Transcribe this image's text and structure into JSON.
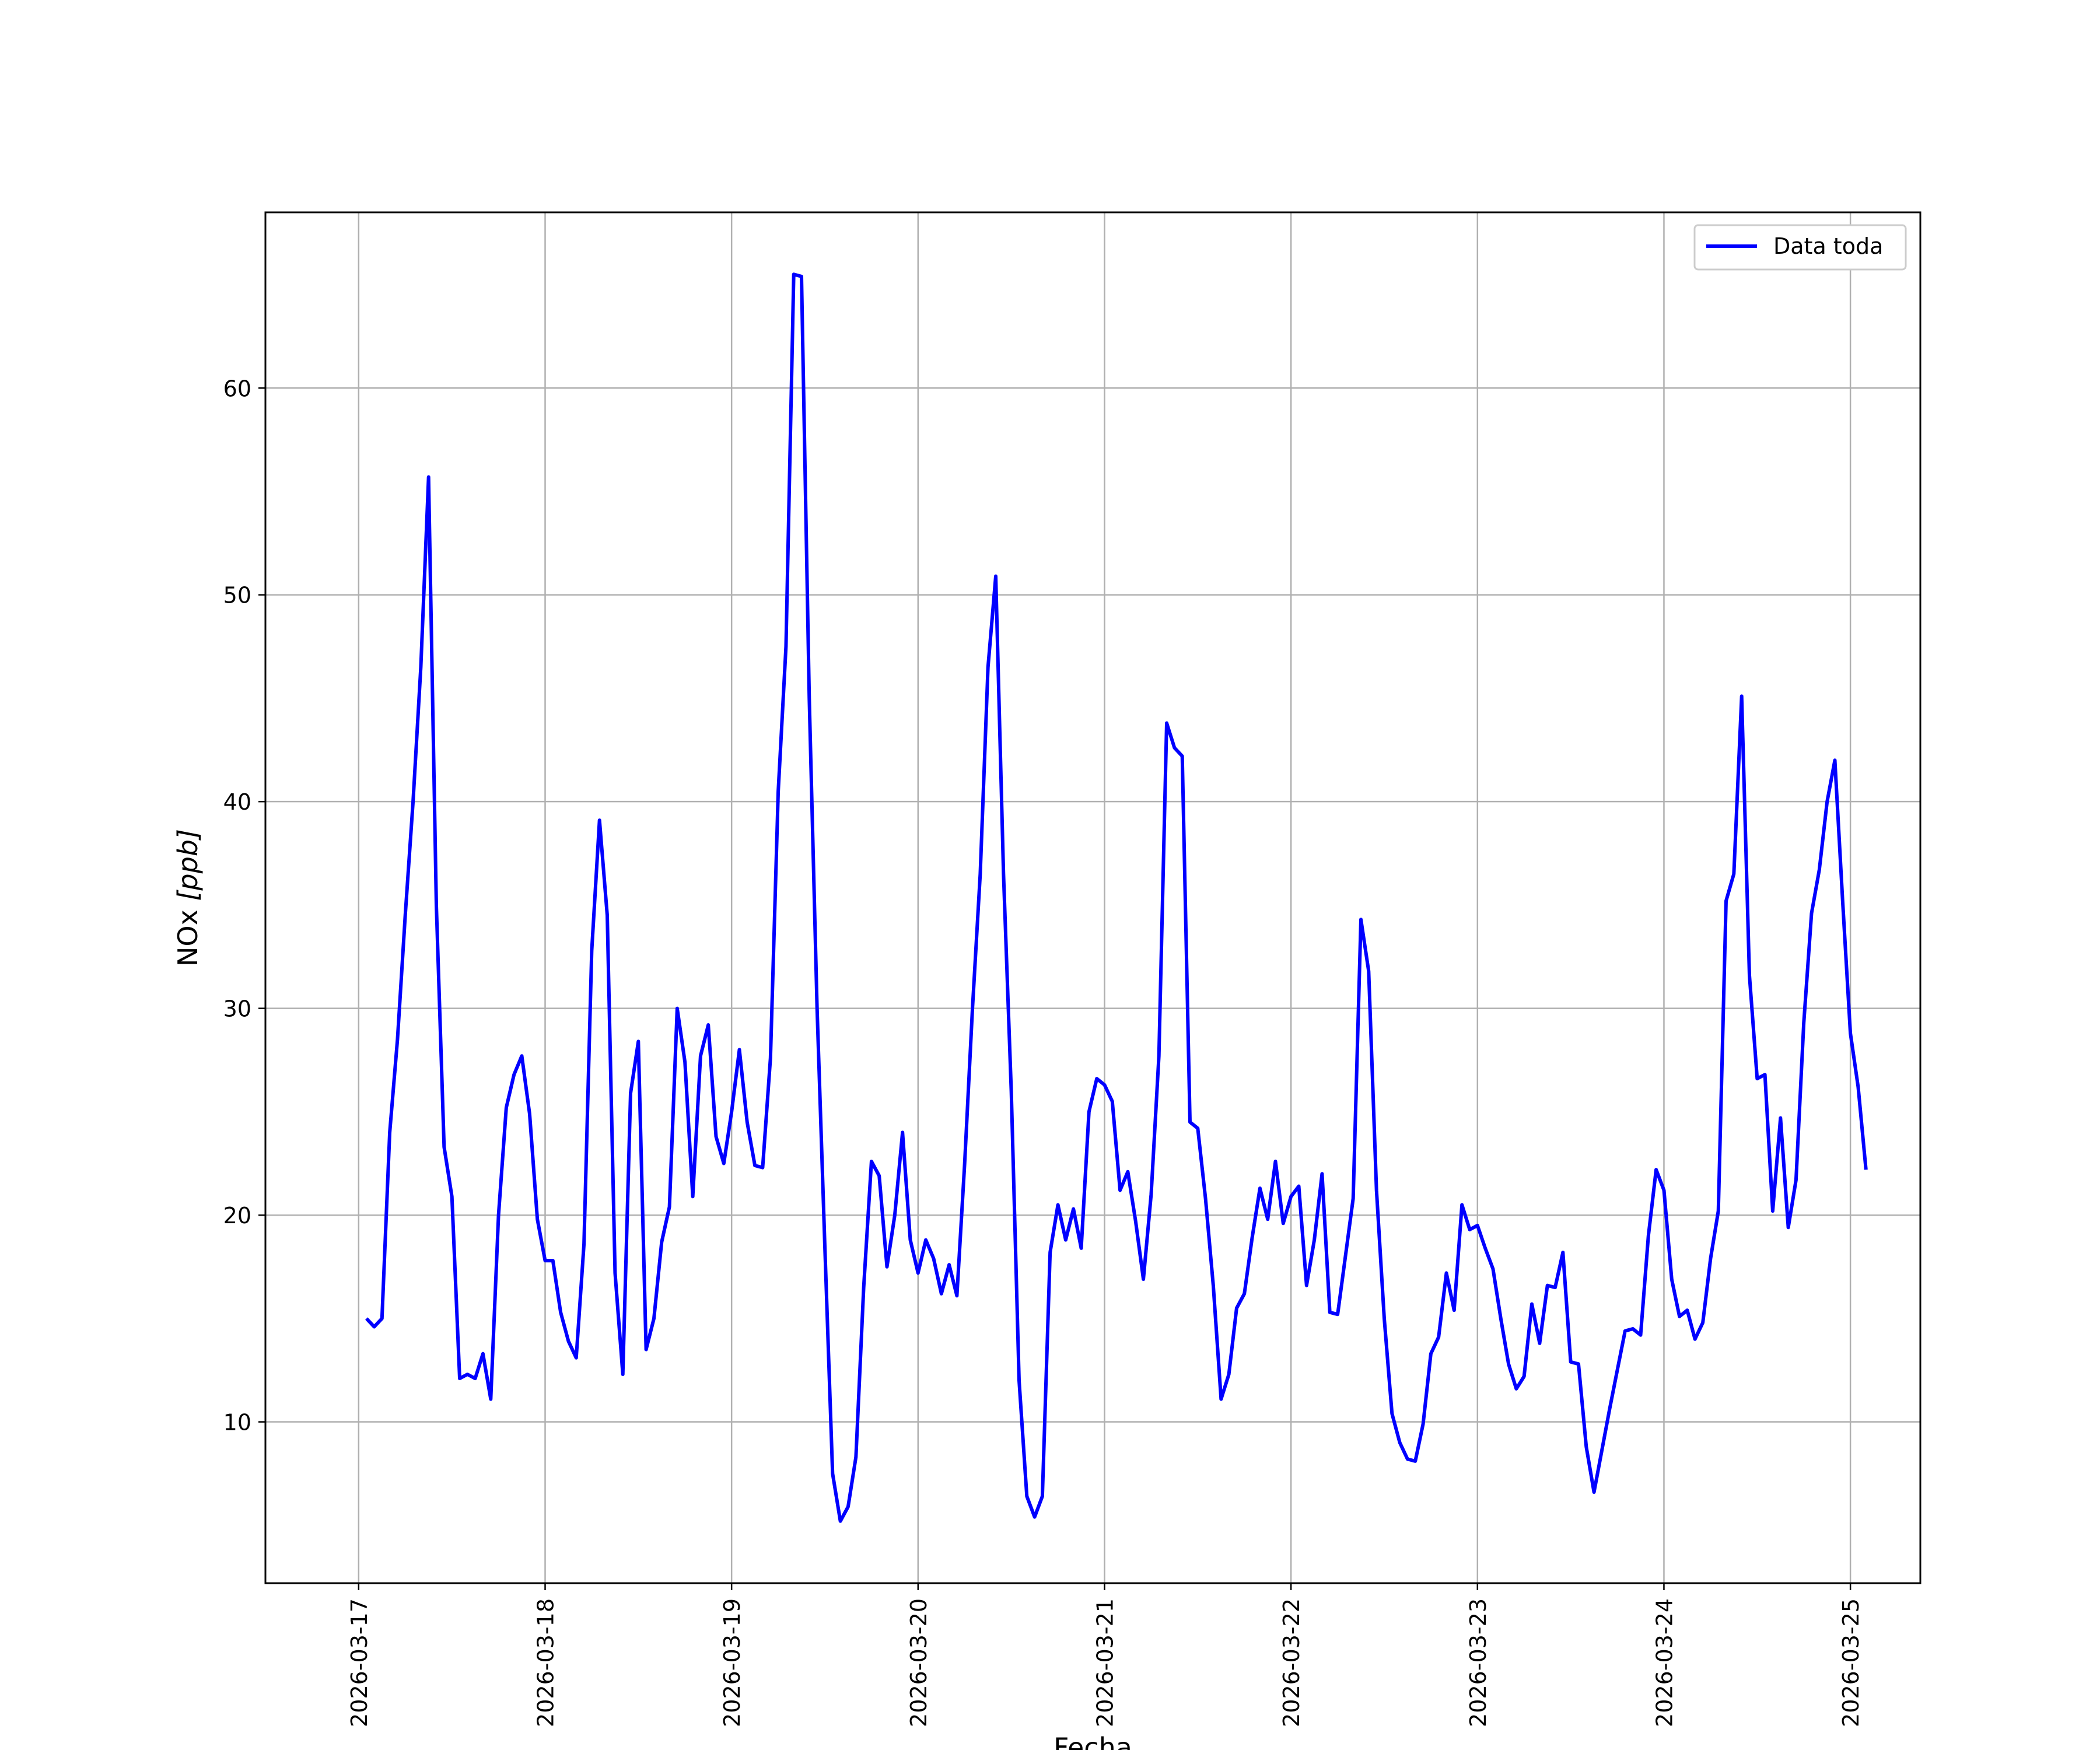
{
  "chart_data": {
    "type": "line",
    "xlabel": "Fecha",
    "ylabel_main": "NOx ",
    "ylabel_unit": "[ppb]",
    "x_tick_labels": [
      "2026-03-17",
      "2026-03-18",
      "2026-03-19",
      "2026-03-20",
      "2026-03-21",
      "2026-03-22",
      "2026-03-23",
      "2026-03-24",
      "2026-03-25"
    ],
    "y_ticks": [
      10,
      20,
      30,
      40,
      50,
      60
    ],
    "xlim": [
      "2026-03-16 12:00",
      "2026-03-25 09:00"
    ],
    "ylim": [
      2.2,
      68.5
    ],
    "grid": true,
    "legend_position": "top-right",
    "series": [
      {
        "name": "Data toda",
        "color": "#0000ff",
        "x_start": "2026-03-17 01:00",
        "x_step_hours": 1,
        "values": [
          15.0,
          14.6,
          15.0,
          24.0,
          28.5,
          34.5,
          40.0,
          46.5,
          55.7,
          35.0,
          23.3,
          20.9,
          12.1,
          12.3,
          12.1,
          13.3,
          11.1,
          20.0,
          25.2,
          26.8,
          27.7,
          24.9,
          19.8,
          17.8,
          17.8,
          15.3,
          13.9,
          13.1,
          18.6,
          32.8,
          39.1,
          34.5,
          17.2,
          12.3,
          25.9,
          28.4,
          13.5,
          15.0,
          18.7,
          20.4,
          30.0,
          27.4,
          20.9,
          27.7,
          29.2,
          23.8,
          22.5,
          25.0,
          28.0,
          24.5,
          22.4,
          22.3,
          27.6,
          40.5,
          47.5,
          65.5,
          65.4,
          45.0,
          30.0,
          18.5,
          7.5,
          5.2,
          5.9,
          8.3,
          16.5,
          22.6,
          21.9,
          17.5,
          20.0,
          24.0,
          18.8,
          17.2,
          18.8,
          17.9,
          16.2,
          17.6,
          16.1,
          22.5,
          30.0,
          36.5,
          46.5,
          50.9,
          36.5,
          26.0,
          12.0,
          6.4,
          5.4,
          6.4,
          18.2,
          20.5,
          18.8,
          20.3,
          18.4,
          25.0,
          26.6,
          26.3,
          25.5,
          21.2,
          22.1,
          19.7,
          16.9,
          21.0,
          27.7,
          43.8,
          42.6,
          42.2,
          24.5,
          24.2,
          20.8,
          16.6,
          11.1,
          12.3,
          15.5,
          16.2,
          18.9,
          21.3,
          19.8,
          22.6,
          19.6,
          20.9,
          21.4,
          16.6,
          18.8,
          22.0,
          15.3,
          15.2,
          18.0,
          20.8,
          34.3,
          31.8,
          21.2,
          15.0,
          10.4,
          9.0,
          8.2,
          8.1,
          9.9,
          13.3,
          14.1,
          17.2,
          15.4,
          20.5,
          19.3,
          19.5,
          18.4,
          17.4,
          15.0,
          12.8,
          11.6,
          12.2,
          15.7,
          13.8,
          16.6,
          16.5,
          18.2,
          12.9,
          12.8,
          8.8,
          6.6,
          8.6,
          10.6,
          12.5,
          14.4,
          14.5,
          14.2,
          19.0,
          22.2,
          21.2,
          16.9,
          15.1,
          15.4,
          14.0,
          14.8,
          17.9,
          20.2,
          35.2,
          36.5,
          45.1,
          31.6,
          26.6,
          26.8,
          20.2,
          24.7,
          19.4,
          21.7,
          29.3,
          34.6,
          36.7,
          40.0,
          42.0,
          35.2,
          28.8,
          26.2,
          22.2
        ]
      }
    ]
  }
}
